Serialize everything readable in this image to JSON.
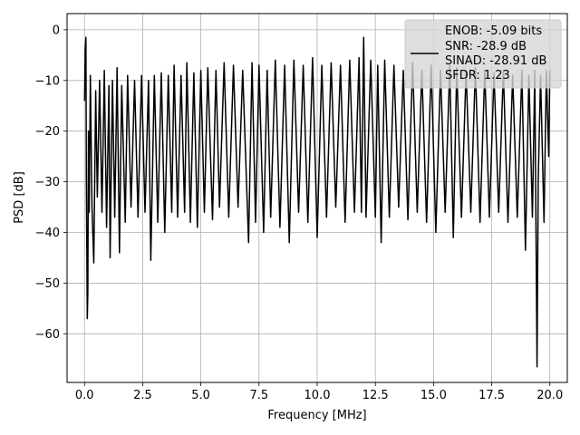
{
  "chart_data": {
    "type": "line",
    "xlabel": "Frequency [MHz]",
    "ylabel": "PSD [dB]",
    "xlim": [
      -0.75,
      20.75
    ],
    "ylim": [
      -69.6,
      3.2
    ],
    "xticks": [
      0.0,
      2.5,
      5.0,
      7.5,
      10.0,
      12.5,
      15.0,
      17.5,
      20.0
    ],
    "xtick_labels": [
      "0.0",
      "2.5",
      "5.0",
      "7.5",
      "10.0",
      "12.5",
      "15.0",
      "17.5",
      "20.0"
    ],
    "yticks": [
      0,
      -10,
      -20,
      -30,
      -40,
      -50,
      -60
    ],
    "ytick_labels": [
      "0",
      "−10",
      "−20",
      "−30",
      "−40",
      "−50",
      "−60"
    ],
    "grid": true,
    "legend_position": "top-right",
    "legend_lines": [
      "ENOB: -5.09 bits",
      "SNR: -28.9 dB",
      "SINAD: -28.91 dB",
      "SFDR: 1.23"
    ],
    "series": [
      {
        "color": "#000000",
        "points": [
          [
            0.0,
            -14.0
          ],
          [
            0.03,
            -4.0
          ],
          [
            0.06,
            -1.5
          ],
          [
            0.08,
            -30.0
          ],
          [
            0.1,
            -43.0
          ],
          [
            0.12,
            -57.0
          ],
          [
            0.14,
            -52.0
          ],
          [
            0.17,
            -20.0
          ],
          [
            0.2,
            -36.0
          ],
          [
            0.25,
            -9.0
          ],
          [
            0.32,
            -35.0
          ],
          [
            0.4,
            -46.0
          ],
          [
            0.48,
            -12.0
          ],
          [
            0.55,
            -33.0
          ],
          [
            0.65,
            -10.0
          ],
          [
            0.75,
            -36.0
          ],
          [
            0.85,
            -8.0
          ],
          [
            0.95,
            -39.0
          ],
          [
            1.05,
            -11.0
          ],
          [
            1.1,
            -45.0
          ],
          [
            1.2,
            -10.0
          ],
          [
            1.3,
            -37.0
          ],
          [
            1.4,
            -7.5
          ],
          [
            1.5,
            -44.0
          ],
          [
            1.6,
            -11.0
          ],
          [
            1.75,
            -38.0
          ],
          [
            1.85,
            -9.0
          ],
          [
            2.0,
            -35.0
          ],
          [
            2.15,
            -10.0
          ],
          [
            2.3,
            -37.0
          ],
          [
            2.45,
            -9.0
          ],
          [
            2.6,
            -36.0
          ],
          [
            2.75,
            -10.0
          ],
          [
            2.85,
            -45.5
          ],
          [
            3.0,
            -9.0
          ],
          [
            3.15,
            -38.0
          ],
          [
            3.3,
            -8.5
          ],
          [
            3.45,
            -40.0
          ],
          [
            3.6,
            -9.0
          ],
          [
            3.75,
            -36.0
          ],
          [
            3.85,
            -7.0
          ],
          [
            4.0,
            -37.0
          ],
          [
            4.15,
            -9.0
          ],
          [
            4.3,
            -36.0
          ],
          [
            4.4,
            -6.5
          ],
          [
            4.55,
            -38.0
          ],
          [
            4.7,
            -8.5
          ],
          [
            4.85,
            -39.0
          ],
          [
            5.0,
            -8.0
          ],
          [
            5.15,
            -36.0
          ],
          [
            5.3,
            -7.5
          ],
          [
            5.5,
            -37.5
          ],
          [
            5.65,
            -8.0
          ],
          [
            5.8,
            -35.0
          ],
          [
            6.0,
            -6.5
          ],
          [
            6.2,
            -37.0
          ],
          [
            6.4,
            -7.0
          ],
          [
            6.6,
            -35.0
          ],
          [
            6.8,
            -8.0
          ],
          [
            7.05,
            -42.0
          ],
          [
            7.2,
            -6.5
          ],
          [
            7.35,
            -38.0
          ],
          [
            7.5,
            -7.0
          ],
          [
            7.7,
            -40.0
          ],
          [
            7.85,
            -8.0
          ],
          [
            8.0,
            -37.0
          ],
          [
            8.2,
            -6.0
          ],
          [
            8.4,
            -39.0
          ],
          [
            8.6,
            -7.0
          ],
          [
            8.8,
            -42.0
          ],
          [
            9.0,
            -6.0
          ],
          [
            9.2,
            -36.0
          ],
          [
            9.4,
            -7.0
          ],
          [
            9.6,
            -38.0
          ],
          [
            9.8,
            -5.5
          ],
          [
            10.0,
            -41.0
          ],
          [
            10.2,
            -7.0
          ],
          [
            10.4,
            -37.0
          ],
          [
            10.6,
            -6.5
          ],
          [
            10.8,
            -35.0
          ],
          [
            11.0,
            -7.0
          ],
          [
            11.2,
            -38.0
          ],
          [
            11.4,
            -6.0
          ],
          [
            11.6,
            -36.0
          ],
          [
            11.8,
            -5.5
          ],
          [
            11.9,
            -36.0
          ],
          [
            12.0,
            -1.5
          ],
          [
            12.1,
            -37.0
          ],
          [
            12.3,
            -6.0
          ],
          [
            12.5,
            -37.0
          ],
          [
            12.6,
            -7.0
          ],
          [
            12.75,
            -42.0
          ],
          [
            12.9,
            -6.0
          ],
          [
            13.1,
            -37.0
          ],
          [
            13.3,
            -7.0
          ],
          [
            13.5,
            -35.0
          ],
          [
            13.7,
            -8.0
          ],
          [
            13.9,
            -37.5
          ],
          [
            14.1,
            -6.5
          ],
          [
            14.3,
            -36.0
          ],
          [
            14.5,
            -8.0
          ],
          [
            14.7,
            -38.0
          ],
          [
            14.9,
            -7.0
          ],
          [
            15.1,
            -40.0
          ],
          [
            15.3,
            -8.0
          ],
          [
            15.5,
            -36.0
          ],
          [
            15.7,
            -7.0
          ],
          [
            15.85,
            -41.0
          ],
          [
            16.0,
            -7.5
          ],
          [
            16.2,
            -37.0
          ],
          [
            16.4,
            -8.0
          ],
          [
            16.6,
            -36.0
          ],
          [
            16.8,
            -7.5
          ],
          [
            17.0,
            -38.0
          ],
          [
            17.2,
            -8.0
          ],
          [
            17.4,
            -37.0
          ],
          [
            17.6,
            -8.5
          ],
          [
            17.8,
            -36.0
          ],
          [
            18.0,
            -8.0
          ],
          [
            18.2,
            -38.0
          ],
          [
            18.4,
            -9.0
          ],
          [
            18.6,
            -37.0
          ],
          [
            18.8,
            -8.0
          ],
          [
            18.95,
            -43.5
          ],
          [
            19.1,
            -9.0
          ],
          [
            19.25,
            -37.0
          ],
          [
            19.35,
            -8.0
          ],
          [
            19.45,
            -66.5
          ],
          [
            19.5,
            -30.0
          ],
          [
            19.6,
            -9.0
          ],
          [
            19.75,
            -38.0
          ],
          [
            19.85,
            -8.0
          ],
          [
            19.95,
            -25.0
          ],
          [
            20.0,
            -8.0
          ]
        ]
      }
    ]
  }
}
